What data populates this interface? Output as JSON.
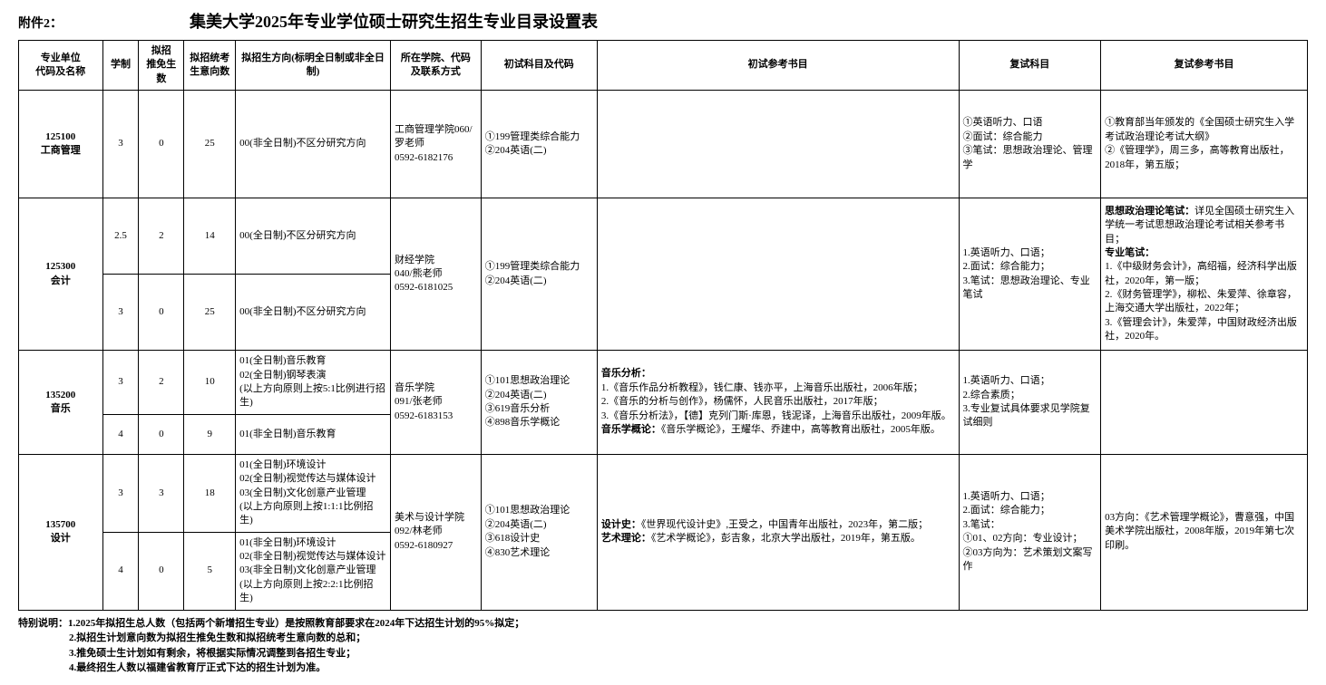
{
  "header": {
    "annex": "附件2：",
    "title": "集美大学2025年专业学位硕士研究生招生专业目录设置表"
  },
  "columns": {
    "c1": "专业单位\n代码及名称",
    "c2": "学制",
    "c3": "拟招\n推免生数",
    "c4": "拟招统考\n生意向数",
    "c5": "拟招生方向(标明全日制或非全日制)",
    "c6": "所在学院、代码\n及联系方式",
    "c7": "初试科目及代码",
    "c8": "初试参考书目",
    "c9": "复试科目",
    "c10": "复试参考书目"
  },
  "rows": {
    "r1": {
      "code": "125100\n工商管理",
      "xz": "3",
      "tm": "0",
      "tk": "25",
      "dir": "00(非全日制)不区分研究方向",
      "dept": "工商管理学院060/罗老师\n0592-6182176",
      "exam": "①199管理类综合能力\n②204英语(二)",
      "ref1": "",
      "fs": "①英语听力、口语\n②面试：综合能力\n③笔试：思想政治理论、管理学",
      "ref2": "①教育部当年颁发的《全国硕士研究生入学考试政治理论考试大纲》\n②《管理学》，周三多，高等教育出版社，2018年，第五版；"
    },
    "r2": {
      "code": "125300\n会计",
      "sub": [
        {
          "xz": "2.5",
          "tm": "2",
          "tk": "14",
          "dir": "00(全日制)不区分研究方向"
        },
        {
          "xz": "3",
          "tm": "0",
          "tk": "25",
          "dir": "00(非全日制)不区分研究方向"
        }
      ],
      "dept": "财经学院\n040/熊老师\n0592-6181025",
      "exam": "①199管理类综合能力\n②204英语(二)",
      "ref1": "",
      "fs": "1.英语听力、口语；\n2.面试：综合能力；\n3.笔试：思想政治理论、专业笔试",
      "ref2_prefix_bold": "思想政治理论笔试：",
      "ref2_line1_rest": "详见全国硕士研究生入学统一考试思想政治理论考试相关参考书目；",
      "ref2_line2_bold": "专业笔试：",
      "ref2_rest": "1.《中级财务会计》，高绍福，经济科学出版社，2020年，第一版；\n2.《财务管理学》，柳松、朱爱萍、徐章容，上海交通大学出版社，2022年；\n3.《管理会计》，朱爱萍，中国财政经济出版社，2020年。"
    },
    "r3": {
      "code": "135200\n音乐",
      "sub": [
        {
          "xz": "3",
          "tm": "2",
          "tk": "10",
          "dir": "01(全日制)音乐教育\n02(全日制)钢琴表演\n(以上方向原则上按5:1比例进行招生)"
        },
        {
          "xz": "4",
          "tm": "0",
          "tk": "9",
          "dir": "01(非全日制)音乐教育"
        }
      ],
      "dept": "音乐学院\n091/张老师\n0592-6183153",
      "exam": "①101思想政治理论\n②204英语(二)\n③619音乐分析\n④898音乐学概论",
      "ref1_b1": "音乐分析：",
      "ref1_l1": "1.《音乐作品分析教程》，钱仁康、钱亦平，上海音乐出版社，2006年版；\n2.《音乐的分析与创作》，杨儒怀，人民音乐出版社，2017年版；\n3.《音乐分析法》，【德】克列门斯·库恩，钱泥译，上海音乐出版社，2009年版。",
      "ref1_b2": "音乐学概论：",
      "ref1_l2": "《音乐学概论》，王耀华、乔建中，高等教育出版社，2005年版。",
      "fs": "1.英语听力、口语；\n2.综合素质；\n3.专业复试具体要求见学院复试细则",
      "ref2": ""
    },
    "r4": {
      "code": "135700\n设计",
      "sub": [
        {
          "xz": "3",
          "tm": "3",
          "tk": "18",
          "dir": "01(全日制)环境设计\n02(全日制)视觉传达与媒体设计\n03(全日制)文化创意产业管理\n(以上方向原则上按1:1:1比例招生)"
        },
        {
          "xz": "4",
          "tm": "0",
          "tk": "5",
          "dir": "01(非全日制)环境设计\n02(非全日制)视觉传达与媒体设计\n03(非全日制)文化创意产业管理\n(以上方向原则上按2:2:1比例招生)"
        }
      ],
      "dept": "美术与设计学院092/林老师\n0592-6180927",
      "exam": "①101思想政治理论\n②204英语(二)\n③618设计史\n④830艺术理论",
      "ref1_b1": "设计史：",
      "ref1_l1": "《世界现代设计史》,王受之，中国青年出版社，2023年，第二版；",
      "ref1_b2": "艺术理论：",
      "ref1_l2": "《艺术学概论》，彭吉象，北京大学出版社，2019年，第五版。",
      "fs": "1.英语听力、口语；\n2.面试：综合能力；\n3.笔试：\n①01、02方向：专业设计；\n②03方向为：艺术策划文案写作",
      "ref2": "03方向：《艺术管理学概论》，曹意强，中国美术学院出版社，2008年版，2019年第七次印刷。"
    }
  },
  "notes": {
    "prefix": "特别说明：",
    "n1": "1.2025年拟招生总人数（包括两个新增招生专业）是按照教育部要求在2024年下达招生计划的95%拟定；",
    "n2": "2.拟招生计划意向数为拟招生推免生数和拟招统考生意向数的总和；",
    "n3": "3.推免硕士生计划如有剩余，将根据实际情况调整到各招生专业；",
    "n4": "4.最终招生人数以福建省教育厅正式下达的招生计划为准。"
  }
}
